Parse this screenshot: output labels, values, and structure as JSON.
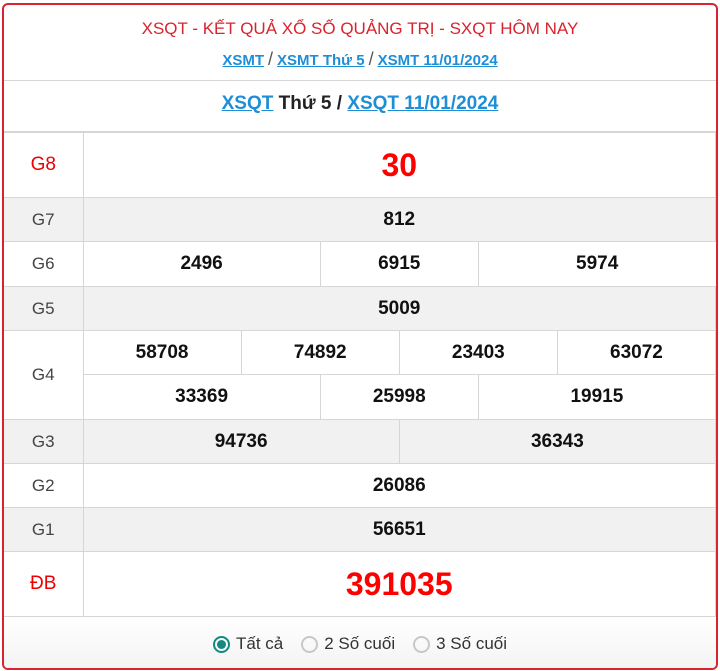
{
  "header": {
    "title": "XSQT - KẾT QUẢ XỔ SỐ QUẢNG TRỊ - SXQT HÔM NAY",
    "crumbs": [
      "XSMT",
      "XSMT Thứ 5",
      "XSMT 11/01/2024"
    ],
    "separator": "/"
  },
  "subtitle": {
    "link1": "XSQT",
    "text": "Thứ 5 /",
    "link2": "XSQT 11/01/2024"
  },
  "results": {
    "G8": {
      "label": "G8",
      "values": [
        "30"
      ]
    },
    "G7": {
      "label": "G7",
      "values": [
        "812"
      ]
    },
    "G6": {
      "label": "G6",
      "values": [
        "2496",
        "6915",
        "5974"
      ]
    },
    "G5": {
      "label": "G5",
      "values": [
        "5009"
      ]
    },
    "G4": {
      "label": "G4",
      "values": [
        "58708",
        "74892",
        "23403",
        "63072",
        "33369",
        "25998",
        "19915"
      ]
    },
    "G3": {
      "label": "G3",
      "values": [
        "94736",
        "36343"
      ]
    },
    "G2": {
      "label": "G2",
      "values": [
        "26086"
      ]
    },
    "G1": {
      "label": "G1",
      "values": [
        "56651"
      ]
    },
    "DB": {
      "label": "ĐB",
      "values": [
        "391035"
      ]
    }
  },
  "filter": {
    "options": [
      "Tất cả",
      "2 Số cuối",
      "3 Số cuối"
    ],
    "selected": "Tất cả",
    "accent": "#148a7e"
  }
}
